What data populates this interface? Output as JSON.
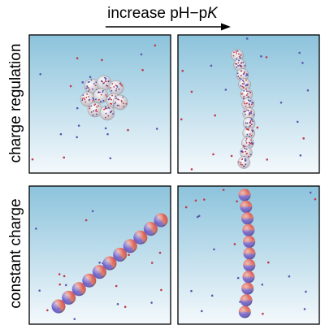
{
  "header": {
    "text": "increase pH−p",
    "italic": "K"
  },
  "rows": [
    {
      "label": "charge regulation"
    },
    {
      "label": "constant charge"
    }
  ]
}
